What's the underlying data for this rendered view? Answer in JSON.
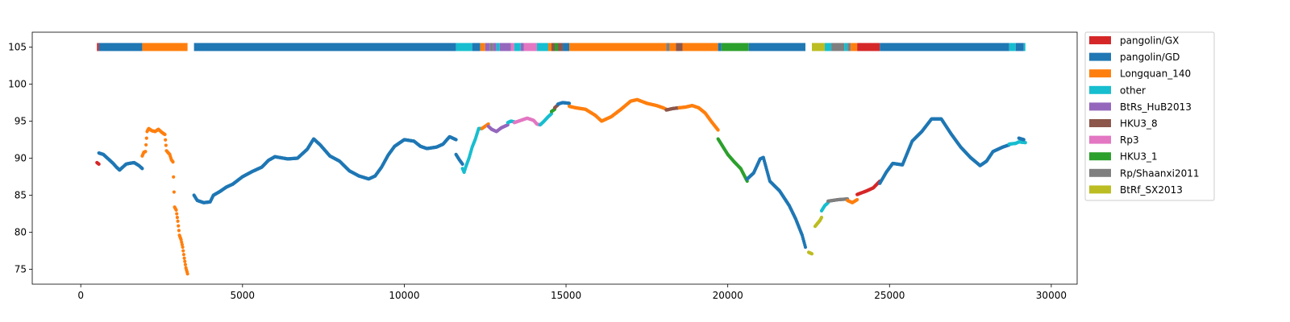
{
  "chart_data": {
    "type": "scatter",
    "title": "",
    "xlabel": "",
    "ylabel": "",
    "xlim": [
      -1500,
      30800
    ],
    "ylim": [
      73,
      107
    ],
    "xticks": [
      0,
      5000,
      10000,
      15000,
      20000,
      25000,
      30000
    ],
    "xtick_labels": [
      "0",
      "5000",
      "10000",
      "15000",
      "20000",
      "25000",
      "30000"
    ],
    "yticks": [
      75,
      80,
      85,
      90,
      95,
      100,
      105
    ],
    "ytick_labels": [
      "75",
      "80",
      "85",
      "90",
      "95",
      "100",
      "105"
    ],
    "grid": false,
    "legend_position": "outside-right",
    "bar_y": 105,
    "series": [
      {
        "name": "pangolin/GX",
        "color": "#d62728"
      },
      {
        "name": "pangolin/GD",
        "color": "#1f77b4"
      },
      {
        "name": "Longquan_140",
        "color": "#ff7f0e"
      },
      {
        "name": "other",
        "color": "#17becf"
      },
      {
        "name": "BtRs_HuB2013",
        "color": "#9467bd"
      },
      {
        "name": "HKU3_8",
        "color": "#8c564b"
      },
      {
        "name": "Rp3",
        "color": "#e377c2"
      },
      {
        "name": "HKU3_1",
        "color": "#2ca02c"
      },
      {
        "name": "Rp/Shaanxi2011",
        "color": "#7f7f7f"
      },
      {
        "name": "BtRf_SX2013",
        "color": "#bcbd22"
      }
    ],
    "segments": [
      {
        "series": "pangolin/GX",
        "x": [
          500,
          560
        ]
      },
      {
        "series": "pangolin/GD",
        "x": [
          560,
          1900
        ]
      },
      {
        "series": "Longquan_140",
        "x": [
          1900,
          3300
        ]
      },
      {
        "series": "pangolin/GD",
        "x": [
          3500,
          11600
        ]
      },
      {
        "series": "other",
        "x": [
          11600,
          12100
        ]
      },
      {
        "series": "pangolin/GD",
        "x": [
          12100,
          12350
        ]
      },
      {
        "series": "Longquan_140",
        "x": [
          12350,
          12500
        ]
      },
      {
        "series": "BtRs_HuB2013",
        "x": [
          12500,
          12650
        ]
      },
      {
        "series": "Rp/Shaanxi2011",
        "x": [
          12650,
          12750
        ]
      },
      {
        "series": "BtRs_HuB2013",
        "x": [
          12750,
          12850
        ]
      },
      {
        "series": "other",
        "x": [
          12850,
          12950
        ]
      },
      {
        "series": "BtRs_HuB2013",
        "x": [
          12950,
          13300
        ]
      },
      {
        "series": "Rp3",
        "x": [
          13300,
          13400
        ]
      },
      {
        "series": "other",
        "x": [
          13400,
          13600
        ]
      },
      {
        "series": "BtRs_HuB2013",
        "x": [
          13600,
          13700
        ]
      },
      {
        "series": "Rp3",
        "x": [
          13700,
          14100
        ]
      },
      {
        "series": "other",
        "x": [
          14100,
          14450
        ]
      },
      {
        "series": "Longquan_140",
        "x": [
          14450,
          14550
        ]
      },
      {
        "series": "HKU3_8",
        "x": [
          14550,
          14650
        ]
      },
      {
        "series": "HKU3_1",
        "x": [
          14650,
          14750
        ]
      },
      {
        "series": "HKU3_8",
        "x": [
          14750,
          14900
        ]
      },
      {
        "series": "pangolin/GD",
        "x": [
          14900,
          15100
        ]
      },
      {
        "series": "Longquan_140",
        "x": [
          15100,
          18100
        ]
      },
      {
        "series": "Rp/Shaanxi2011",
        "x": [
          18100,
          18200
        ]
      },
      {
        "series": "Longquan_140",
        "x": [
          18200,
          18400
        ]
      },
      {
        "series": "HKU3_8",
        "x": [
          18400,
          18600
        ]
      },
      {
        "series": "Longquan_140",
        "x": [
          18600,
          19700
        ]
      },
      {
        "series": "pangolin/GD",
        "x": [
          19700,
          19800
        ]
      },
      {
        "series": "HKU3_1",
        "x": [
          19800,
          20650
        ]
      },
      {
        "series": "pangolin/GD",
        "x": [
          20650,
          22400
        ]
      },
      {
        "series": "BtRf_SX2013",
        "x": [
          22600,
          23000
        ]
      },
      {
        "series": "other",
        "x": [
          23000,
          23200
        ]
      },
      {
        "series": "Rp/Shaanxi2011",
        "x": [
          23200,
          23600
        ]
      },
      {
        "series": "other",
        "x": [
          23600,
          23700
        ]
      },
      {
        "series": "Rp/Shaanxi2011",
        "x": [
          23700,
          23800
        ]
      },
      {
        "series": "Longquan_140",
        "x": [
          23800,
          24000
        ]
      },
      {
        "series": "pangolin/GX",
        "x": [
          24000,
          24700
        ]
      },
      {
        "series": "pangolin/GD",
        "x": [
          24700,
          28700
        ]
      },
      {
        "series": "other",
        "x": [
          28700,
          28900
        ]
      },
      {
        "series": "pangolin/GD",
        "x": [
          28900,
          29150
        ]
      },
      {
        "series": "other",
        "x": [
          29150,
          29200
        ]
      }
    ],
    "traces": [
      {
        "series": "pangolin/GX",
        "points": [
          [
            500,
            89.4
          ],
          [
            560,
            89.2
          ]
        ]
      },
      {
        "series": "pangolin/GD",
        "points": [
          [
            560,
            90.7
          ],
          [
            700,
            90.5
          ],
          [
            850,
            89.9
          ],
          [
            1000,
            89.3
          ],
          [
            1100,
            88.8
          ],
          [
            1200,
            88.4
          ],
          [
            1300,
            88.8
          ],
          [
            1400,
            89.2
          ],
          [
            1500,
            89.3
          ],
          [
            1650,
            89.4
          ],
          [
            1800,
            89.0
          ],
          [
            1900,
            88.6
          ]
        ]
      },
      {
        "series": "Longquan_140",
        "points": [
          [
            1900,
            90.3
          ],
          [
            1950,
            90.8
          ],
          [
            2000,
            90.9
          ],
          [
            2050,
            93.6
          ],
          [
            2100,
            94.0
          ],
          [
            2200,
            93.7
          ],
          [
            2300,
            93.6
          ],
          [
            2400,
            93.9
          ],
          [
            2500,
            93.5
          ],
          [
            2600,
            93.2
          ],
          [
            2650,
            91.0
          ],
          [
            2750,
            90.5
          ],
          [
            2800,
            89.8
          ],
          [
            2850,
            89.5
          ],
          [
            2900,
            83.4
          ],
          [
            2950,
            83.0
          ],
          [
            3000,
            81.5
          ],
          [
            3050,
            79.6
          ],
          [
            3100,
            79.0
          ],
          [
            3150,
            78.0
          ],
          [
            3200,
            76.5
          ],
          [
            3250,
            75.2
          ],
          [
            3300,
            74.4
          ]
        ]
      },
      {
        "series": "pangolin/GD",
        "points": [
          [
            3500,
            85.0
          ],
          [
            3600,
            84.3
          ],
          [
            3800,
            84.0
          ],
          [
            4000,
            84.1
          ],
          [
            4100,
            85.0
          ],
          [
            4300,
            85.5
          ],
          [
            4500,
            86.1
          ],
          [
            4700,
            86.5
          ],
          [
            5000,
            87.5
          ],
          [
            5300,
            88.2
          ],
          [
            5600,
            88.8
          ],
          [
            5800,
            89.7
          ],
          [
            6000,
            90.2
          ],
          [
            6400,
            89.9
          ],
          [
            6700,
            90.0
          ],
          [
            7000,
            91.2
          ],
          [
            7200,
            92.6
          ],
          [
            7400,
            91.8
          ],
          [
            7700,
            90.3
          ],
          [
            8000,
            89.6
          ],
          [
            8300,
            88.3
          ],
          [
            8600,
            87.6
          ],
          [
            8900,
            87.2
          ],
          [
            9100,
            87.6
          ],
          [
            9300,
            88.8
          ],
          [
            9500,
            90.4
          ],
          [
            9700,
            91.6
          ],
          [
            10000,
            92.5
          ],
          [
            10300,
            92.3
          ],
          [
            10500,
            91.6
          ],
          [
            10700,
            91.3
          ],
          [
            11000,
            91.5
          ],
          [
            11200,
            91.9
          ],
          [
            11400,
            92.9
          ],
          [
            11600,
            92.5
          ]
        ]
      },
      {
        "series": "pangolin/GD",
        "points": [
          [
            11600,
            90.5
          ],
          [
            11700,
            89.8
          ],
          [
            11800,
            89.2
          ]
        ]
      },
      {
        "series": "other",
        "points": [
          [
            11800,
            88.6
          ],
          [
            11850,
            88.1
          ],
          [
            11900,
            88.8
          ],
          [
            12000,
            90.0
          ],
          [
            12100,
            91.5
          ],
          [
            12200,
            92.6
          ],
          [
            12300,
            94.0
          ],
          [
            12400,
            94.0
          ]
        ]
      },
      {
        "series": "Longquan_140",
        "points": [
          [
            12400,
            94.0
          ],
          [
            12500,
            94.3
          ],
          [
            12600,
            94.6
          ]
        ]
      },
      {
        "series": "BtRs_HuB2013",
        "points": [
          [
            12600,
            94.3
          ],
          [
            12700,
            93.9
          ],
          [
            12850,
            93.6
          ],
          [
            13000,
            94.1
          ],
          [
            13200,
            94.5
          ]
        ]
      },
      {
        "series": "other",
        "points": [
          [
            13200,
            94.8
          ],
          [
            13300,
            95.0
          ],
          [
            13400,
            94.9
          ]
        ]
      },
      {
        "series": "Rp3",
        "points": [
          [
            13400,
            94.8
          ],
          [
            13600,
            95.1
          ],
          [
            13800,
            95.4
          ],
          [
            14000,
            95.1
          ],
          [
            14100,
            94.6
          ],
          [
            14200,
            94.5
          ]
        ]
      },
      {
        "series": "other",
        "points": [
          [
            14200,
            94.5
          ],
          [
            14300,
            94.9
          ],
          [
            14450,
            95.6
          ],
          [
            14550,
            96.0
          ]
        ]
      },
      {
        "series": "HKU3_1",
        "points": [
          [
            14550,
            96.3
          ],
          [
            14650,
            96.6
          ]
        ]
      },
      {
        "series": "HKU3_8",
        "points": [
          [
            14650,
            96.8
          ],
          [
            14750,
            97.2
          ]
        ]
      },
      {
        "series": "pangolin/GD",
        "points": [
          [
            14750,
            97.3
          ],
          [
            14900,
            97.5
          ],
          [
            15100,
            97.4
          ]
        ]
      },
      {
        "series": "Longquan_140",
        "points": [
          [
            15100,
            97.0
          ],
          [
            15300,
            96.8
          ],
          [
            15600,
            96.6
          ],
          [
            15900,
            95.8
          ],
          [
            16100,
            95.0
          ],
          [
            16400,
            95.6
          ],
          [
            16700,
            96.6
          ],
          [
            17000,
            97.7
          ],
          [
            17200,
            97.9
          ],
          [
            17500,
            97.4
          ],
          [
            17800,
            97.1
          ],
          [
            18000,
            96.8
          ],
          [
            18100,
            96.6
          ]
        ]
      },
      {
        "series": "HKU3_8",
        "points": [
          [
            18100,
            96.5
          ],
          [
            18300,
            96.7
          ],
          [
            18500,
            96.8
          ]
        ]
      },
      {
        "series": "Longquan_140",
        "points": [
          [
            18500,
            96.8
          ],
          [
            18700,
            96.9
          ],
          [
            18900,
            97.1
          ],
          [
            19100,
            96.8
          ],
          [
            19300,
            96.1
          ],
          [
            19500,
            94.9
          ],
          [
            19700,
            93.8
          ]
        ]
      },
      {
        "series": "HKU3_1",
        "points": [
          [
            19700,
            92.6
          ],
          [
            19800,
            91.9
          ],
          [
            20000,
            90.5
          ],
          [
            20200,
            89.5
          ],
          [
            20400,
            88.6
          ],
          [
            20600,
            86.9
          ]
        ]
      },
      {
        "series": "pangolin/GD",
        "points": [
          [
            20600,
            87.2
          ],
          [
            20800,
            88.0
          ],
          [
            21000,
            89.9
          ],
          [
            21100,
            90.1
          ],
          [
            21300,
            86.9
          ],
          [
            21600,
            85.6
          ],
          [
            21900,
            83.6
          ],
          [
            22100,
            81.8
          ],
          [
            22300,
            79.6
          ],
          [
            22400,
            78.0
          ]
        ]
      },
      {
        "series": "BtRf_SX2013",
        "points": [
          [
            22500,
            77.3
          ],
          [
            22600,
            77.1
          ]
        ]
      },
      {
        "series": "BtRf_SX2013",
        "points": [
          [
            22700,
            80.8
          ],
          [
            22850,
            81.6
          ],
          [
            22900,
            82.0
          ]
        ]
      },
      {
        "series": "other",
        "points": [
          [
            22900,
            82.9
          ],
          [
            23000,
            83.6
          ],
          [
            23100,
            84.0
          ]
        ]
      },
      {
        "series": "Rp/Shaanxi2011",
        "points": [
          [
            23100,
            84.2
          ],
          [
            23400,
            84.4
          ],
          [
            23700,
            84.5
          ]
        ]
      },
      {
        "series": "Longquan_140",
        "points": [
          [
            23700,
            84.3
          ],
          [
            23850,
            84.0
          ],
          [
            24000,
            84.4
          ]
        ]
      },
      {
        "series": "pangolin/GX",
        "points": [
          [
            24000,
            85.1
          ],
          [
            24300,
            85.6
          ],
          [
            24500,
            86.0
          ],
          [
            24700,
            86.9
          ]
        ]
      },
      {
        "series": "pangolin/GD",
        "points": [
          [
            24700,
            86.6
          ],
          [
            24900,
            88.1
          ],
          [
            25100,
            89.3
          ],
          [
            25400,
            89.1
          ],
          [
            25700,
            92.3
          ],
          [
            26000,
            93.6
          ],
          [
            26300,
            95.3
          ],
          [
            26600,
            95.3
          ],
          [
            26900,
            93.3
          ],
          [
            27200,
            91.5
          ],
          [
            27500,
            90.1
          ],
          [
            27800,
            89.0
          ],
          [
            28000,
            89.6
          ],
          [
            28200,
            90.9
          ],
          [
            28500,
            91.5
          ],
          [
            28700,
            91.8
          ]
        ]
      },
      {
        "series": "other",
        "points": [
          [
            28700,
            91.9
          ],
          [
            28900,
            92.0
          ],
          [
            29000,
            92.2
          ],
          [
            29200,
            92.1
          ]
        ]
      },
      {
        "series": "pangolin/GD",
        "points": [
          [
            29000,
            92.7
          ],
          [
            29150,
            92.5
          ]
        ]
      }
    ]
  }
}
